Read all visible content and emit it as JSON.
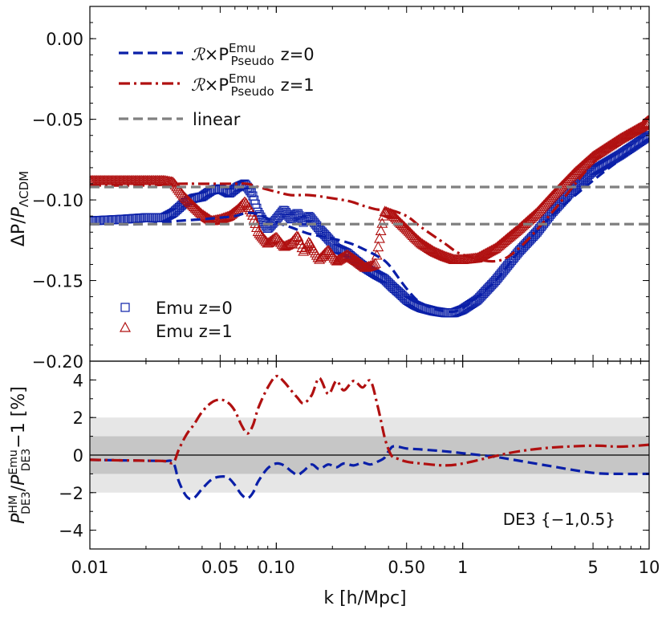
{
  "chart_data": [
    {
      "type": "line",
      "panel": "top",
      "ylabel": "ΔP/P_ΛCDM",
      "xscale": "log",
      "xlim": [
        0.01,
        10
      ],
      "ylim": [
        -0.2,
        0.02
      ],
      "yticks": [
        0.0,
        -0.05,
        -0.1,
        -0.15,
        -0.2
      ],
      "ytick_labels": [
        "0.00",
        "−0.05",
        "−0.10",
        "−0.15",
        "−0.20"
      ],
      "legend_position": "top-left",
      "series": [
        {
          "name": "ℛ×P_Pseudo^Emu z=0",
          "style": "dashed",
          "color": "#0a1fa8",
          "x": [
            0.01,
            0.02,
            0.03,
            0.04,
            0.05,
            0.06,
            0.07,
            0.08,
            0.1,
            0.12,
            0.15,
            0.2,
            0.25,
            0.3,
            0.35,
            0.4,
            0.5,
            0.6,
            0.8,
            1.0,
            1.5,
            2.0,
            3.0,
            5.0,
            7.0,
            10.0
          ],
          "y": [
            -0.115,
            -0.115,
            -0.113,
            -0.112,
            -0.111,
            -0.11,
            -0.108,
            -0.109,
            -0.114,
            -0.117,
            -0.121,
            -0.124,
            -0.127,
            -0.131,
            -0.135,
            -0.14,
            -0.155,
            -0.164,
            -0.169,
            -0.167,
            -0.15,
            -0.132,
            -0.11,
            -0.088,
            -0.075,
            -0.062
          ]
        },
        {
          "name": "ℛ×P_Pseudo^Emu z=1",
          "style": "dash-dot",
          "color": "#b01010",
          "x": [
            0.01,
            0.02,
            0.03,
            0.04,
            0.05,
            0.06,
            0.07,
            0.08,
            0.1,
            0.12,
            0.15,
            0.2,
            0.25,
            0.3,
            0.35,
            0.4,
            0.5,
            0.6,
            0.8,
            1.0,
            1.5,
            2.0,
            3.0,
            5.0,
            7.0,
            10.0
          ],
          "y": [
            -0.091,
            -0.091,
            -0.09,
            -0.09,
            -0.09,
            -0.09,
            -0.09,
            -0.092,
            -0.095,
            -0.097,
            -0.097,
            -0.099,
            -0.101,
            -0.104,
            -0.106,
            -0.106,
            -0.11,
            -0.117,
            -0.127,
            -0.134,
            -0.138,
            -0.13,
            -0.108,
            -0.077,
            -0.063,
            -0.048
          ]
        },
        {
          "name": "linear",
          "style": "dashed",
          "color": "#808080",
          "x": [
            0.01,
            10
          ],
          "y": [
            -0.115,
            -0.115
          ]
        },
        {
          "name": "linear",
          "style": "dashed",
          "color": "#808080",
          "x": [
            0.01,
            10
          ],
          "y": [
            -0.092,
            -0.092
          ]
        },
        {
          "name": "Emu z=0",
          "style": "markers-square",
          "color": "#0a1fa8",
          "x": [
            0.01,
            0.015,
            0.02,
            0.025,
            0.028,
            0.032,
            0.036,
            0.04,
            0.045,
            0.05,
            0.056,
            0.062,
            0.068,
            0.074,
            0.08,
            0.09,
            0.1,
            0.11,
            0.12,
            0.13,
            0.14,
            0.15,
            0.17,
            0.19,
            0.21,
            0.24,
            0.27,
            0.3,
            0.34,
            0.38,
            0.42,
            0.46,
            0.5,
            0.55,
            0.6,
            0.7,
            0.8,
            0.9,
            1.0,
            1.2,
            1.5,
            2.0,
            2.5,
            3.0,
            4.0,
            5.0,
            7.0,
            10.0
          ],
          "y": [
            -0.113,
            -0.112,
            -0.111,
            -0.111,
            -0.108,
            -0.102,
            -0.099,
            -0.098,
            -0.094,
            -0.093,
            -0.096,
            -0.092,
            -0.09,
            -0.096,
            -0.108,
            -0.118,
            -0.112,
            -0.106,
            -0.112,
            -0.108,
            -0.114,
            -0.11,
            -0.118,
            -0.124,
            -0.13,
            -0.133,
            -0.138,
            -0.142,
            -0.146,
            -0.149,
            -0.154,
            -0.158,
            -0.162,
            -0.165,
            -0.167,
            -0.169,
            -0.17,
            -0.17,
            -0.168,
            -0.162,
            -0.15,
            -0.132,
            -0.12,
            -0.108,
            -0.092,
            -0.082,
            -0.072,
            -0.06
          ]
        },
        {
          "name": "Emu z=1",
          "style": "markers-triangle",
          "color": "#b01010",
          "x": [
            0.01,
            0.015,
            0.02,
            0.025,
            0.028,
            0.032,
            0.036,
            0.04,
            0.045,
            0.05,
            0.056,
            0.062,
            0.068,
            0.074,
            0.08,
            0.09,
            0.1,
            0.11,
            0.12,
            0.13,
            0.14,
            0.15,
            0.17,
            0.19,
            0.21,
            0.24,
            0.27,
            0.3,
            0.34,
            0.36,
            0.38,
            0.42,
            0.46,
            0.5,
            0.55,
            0.6,
            0.7,
            0.8,
            0.9,
            1.0,
            1.2,
            1.5,
            2.0,
            2.5,
            3.0,
            4.0,
            5.0,
            7.0,
            10.0
          ],
          "y": [
            -0.088,
            -0.088,
            -0.088,
            -0.088,
            -0.089,
            -0.098,
            -0.104,
            -0.109,
            -0.113,
            -0.112,
            -0.11,
            -0.106,
            -0.101,
            -0.108,
            -0.12,
            -0.127,
            -0.123,
            -0.129,
            -0.127,
            -0.122,
            -0.132,
            -0.126,
            -0.137,
            -0.131,
            -0.138,
            -0.134,
            -0.138,
            -0.142,
            -0.14,
            -0.122,
            -0.107,
            -0.109,
            -0.114,
            -0.118,
            -0.123,
            -0.127,
            -0.132,
            -0.135,
            -0.137,
            -0.137,
            -0.136,
            -0.13,
            -0.118,
            -0.108,
            -0.098,
            -0.083,
            -0.073,
            -0.062,
            -0.052
          ]
        }
      ]
    },
    {
      "type": "line",
      "panel": "bottom",
      "xlabel": "k [h/Mpc]",
      "ylabel": "P_DE3^HM/P_DE3^Emu−1 [%]",
      "xscale": "log",
      "xlim": [
        0.01,
        10
      ],
      "xticks": [
        0.01,
        0.05,
        0.1,
        0.5,
        1,
        5,
        10
      ],
      "xtick_labels": [
        "0.01",
        "0.05",
        "0.10",
        "0.50",
        "1",
        "5",
        "10"
      ],
      "ylim": [
        -5,
        5
      ],
      "yticks": [
        4,
        2,
        0,
        -2,
        -4
      ],
      "ytick_labels": [
        "4",
        "2",
        "0",
        "−2",
        "−4"
      ],
      "bands": [
        {
          "range": [
            -2,
            2
          ],
          "color": "#e6e6e6"
        },
        {
          "range": [
            -1,
            1
          ],
          "color": "#c6c6c6"
        }
      ],
      "annotation": "DE3 {−1,0.5}",
      "series": [
        {
          "name": "z=0",
          "style": "dashed",
          "color": "#0a1fa8",
          "x": [
            0.01,
            0.015,
            0.02,
            0.025,
            0.028,
            0.03,
            0.033,
            0.036,
            0.04,
            0.045,
            0.05,
            0.055,
            0.06,
            0.065,
            0.07,
            0.075,
            0.08,
            0.09,
            0.1,
            0.11,
            0.12,
            0.13,
            0.14,
            0.155,
            0.17,
            0.19,
            0.21,
            0.23,
            0.26,
            0.29,
            0.32,
            0.35,
            0.38,
            0.4,
            0.42,
            0.45,
            0.5,
            0.6,
            0.8,
            1.0,
            1.5,
            2.0,
            3.0,
            5.0,
            7.0,
            10.0
          ],
          "y": [
            -0.25,
            -0.28,
            -0.3,
            -0.32,
            -0.4,
            -1.4,
            -2.2,
            -2.3,
            -1.8,
            -1.3,
            -1.15,
            -1.2,
            -1.6,
            -2.1,
            -2.3,
            -2.0,
            -1.4,
            -0.7,
            -0.45,
            -0.55,
            -0.85,
            -1.05,
            -0.85,
            -0.5,
            -0.75,
            -0.5,
            -0.65,
            -0.45,
            -0.55,
            -0.4,
            -0.5,
            -0.35,
            -0.15,
            0.2,
            0.45,
            0.45,
            0.35,
            0.3,
            0.2,
            0.1,
            -0.1,
            -0.3,
            -0.6,
            -0.95,
            -1.0,
            -1.0
          ]
        },
        {
          "name": "z=1",
          "style": "dash-dot",
          "color": "#b01010",
          "x": [
            0.01,
            0.015,
            0.02,
            0.025,
            0.028,
            0.03,
            0.033,
            0.036,
            0.04,
            0.045,
            0.05,
            0.055,
            0.06,
            0.065,
            0.07,
            0.075,
            0.08,
            0.09,
            0.1,
            0.11,
            0.12,
            0.13,
            0.14,
            0.155,
            0.17,
            0.19,
            0.21,
            0.23,
            0.26,
            0.29,
            0.32,
            0.35,
            0.38,
            0.4,
            0.42,
            0.45,
            0.5,
            0.6,
            0.8,
            1.0,
            1.5,
            2.0,
            3.0,
            5.0,
            7.0,
            10.0
          ],
          "y": [
            -0.25,
            -0.28,
            -0.3,
            -0.32,
            -0.4,
            0.3,
            1.1,
            1.6,
            2.3,
            2.8,
            2.95,
            2.8,
            2.35,
            1.6,
            1.15,
            1.6,
            2.5,
            3.6,
            4.2,
            3.9,
            3.45,
            3.05,
            2.75,
            3.2,
            4.1,
            3.25,
            3.95,
            3.45,
            3.95,
            3.6,
            3.95,
            2.6,
            1.0,
            0.3,
            -0.1,
            -0.2,
            -0.35,
            -0.45,
            -0.55,
            -0.45,
            -0.05,
            0.2,
            0.4,
            0.5,
            0.45,
            0.55
          ]
        }
      ]
    }
  ]
}
